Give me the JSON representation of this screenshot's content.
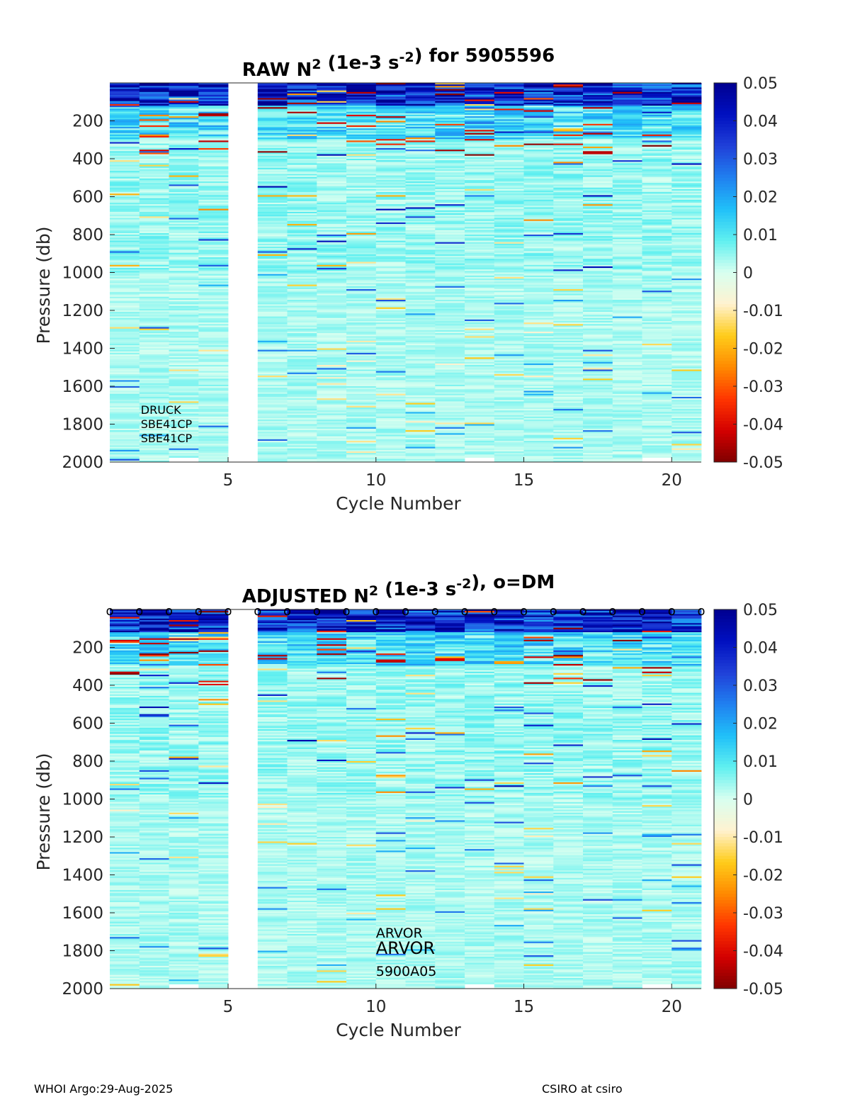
{
  "footer": {
    "left": "WHOI Argo:29-Aug-2025",
    "right": "CSIRO at csiro"
  },
  "colorbar": {
    "ticks": [
      0.05,
      0.04,
      0.03,
      0.02,
      0.01,
      0,
      -0.01,
      -0.02,
      -0.03,
      -0.04,
      -0.05
    ],
    "tick_labels": [
      "0.05",
      "0.04",
      "0.03",
      "0.02",
      "0.01",
      "0",
      "-0.01",
      "-0.02",
      "-0.03",
      "-0.04",
      "-0.05"
    ],
    "colormap": [
      "#800000",
      "#d40000",
      "#ff3600",
      "#ff8a00",
      "#ffcc1a",
      "#fff2d0",
      "#d8fff0",
      "#60f0f0",
      "#20c0f8",
      "#2080f0",
      "#2040d8",
      "#0010c0",
      "#000090"
    ]
  },
  "chart_data": [
    {
      "type": "heatmap",
      "title_prefix": "RAW N",
      "title_sup1": "2",
      "title_mid": " (1e-3 s",
      "title_sup2": "-2",
      "title_suffix": ") for 5905596",
      "xlabel": "Cycle Number",
      "ylabel": "Pressure (db)",
      "xlim": [
        1,
        21
      ],
      "ylim": [
        2000,
        0
      ],
      "clim": [
        -0.05,
        0.05
      ],
      "x_ticks": [
        5,
        10,
        15,
        20
      ],
      "x_tick_labels": [
        "5",
        "10",
        "15",
        "20"
      ],
      "y_ticks": [
        200,
        400,
        600,
        800,
        1000,
        1200,
        1400,
        1600,
        1800,
        2000
      ],
      "y_tick_labels": [
        "200",
        "400",
        "600",
        "800",
        "1000",
        "1200",
        "1400",
        "1600",
        "1800",
        "2000"
      ],
      "missing_cycles": [
        5
      ],
      "sensor_labels": [
        "DRUCK",
        "SBE41CP",
        "SBE41CP"
      ],
      "dm_markers": false
    },
    {
      "type": "heatmap",
      "title_prefix": "ADJUSTED N",
      "title_sup1": "2",
      "title_mid": " (1e-3 s",
      "title_sup2": "-2",
      "title_suffix": "), o=DM",
      "xlabel": "Cycle Number",
      "ylabel": "Pressure (db)",
      "xlim": [
        1,
        21
      ],
      "ylim": [
        2000,
        0
      ],
      "clim": [
        -0.05,
        0.05
      ],
      "x_ticks": [
        5,
        10,
        15,
        20
      ],
      "x_tick_labels": [
        "5",
        "10",
        "15",
        "20"
      ],
      "y_ticks": [
        200,
        400,
        600,
        800,
        1000,
        1200,
        1400,
        1600,
        1800,
        2000
      ],
      "y_tick_labels": [
        "200",
        "400",
        "600",
        "800",
        "1000",
        "1200",
        "1400",
        "1600",
        "1800",
        "2000"
      ],
      "missing_cycles": [
        5
      ],
      "sensor_labels": [
        "ARVOR",
        "ARVOR",
        "5900A05"
      ],
      "dm_markers": true,
      "dm_cycles": [
        1,
        2,
        3,
        4,
        5,
        6,
        7,
        8,
        9,
        10,
        11,
        12,
        13,
        14,
        15,
        16,
        17,
        18,
        19,
        20,
        21
      ],
      "dm_marker_label": "o"
    }
  ]
}
